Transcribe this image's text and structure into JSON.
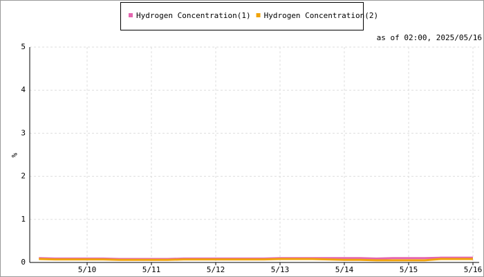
{
  "chart_data": {
    "type": "line",
    "annotation": "as of 02:00, 2025/05/16",
    "ylabel": "%",
    "categories": [
      null,
      null,
      null,
      "5/10",
      null,
      null,
      null,
      "5/11",
      null,
      null,
      null,
      "5/12",
      null,
      null,
      null,
      "5/13",
      null,
      null,
      null,
      "5/14",
      null,
      null,
      null,
      "5/15",
      null,
      null,
      null,
      "5/16"
    ],
    "series": [
      {
        "name": "Hydrogen Concentration(1)",
        "color": "#e466b0",
        "values": [
          0.1,
          0.09,
          0.09,
          0.09,
          0.09,
          0.08,
          0.08,
          0.08,
          0.08,
          0.09,
          0.09,
          0.09,
          0.09,
          0.09,
          0.09,
          0.1,
          0.1,
          0.1,
          0.1,
          0.1,
          0.1,
          0.09,
          0.1,
          0.1,
          0.1,
          0.11,
          0.11,
          0.11
        ]
      },
      {
        "name": "Hydrogen Concentration(2)",
        "color": "#f0a30a",
        "values": [
          0.08,
          0.07,
          0.07,
          0.07,
          0.07,
          0.06,
          0.06,
          0.06,
          0.06,
          0.07,
          0.07,
          0.07,
          0.07,
          0.07,
          0.07,
          0.08,
          0.08,
          0.08,
          0.07,
          0.06,
          0.06,
          0.05,
          0.05,
          0.05,
          0.05,
          0.08,
          0.08,
          0.08
        ]
      }
    ],
    "ylim": [
      0,
      5
    ],
    "yticks": [
      0,
      1,
      2,
      3,
      4,
      5
    ],
    "grid": true
  }
}
